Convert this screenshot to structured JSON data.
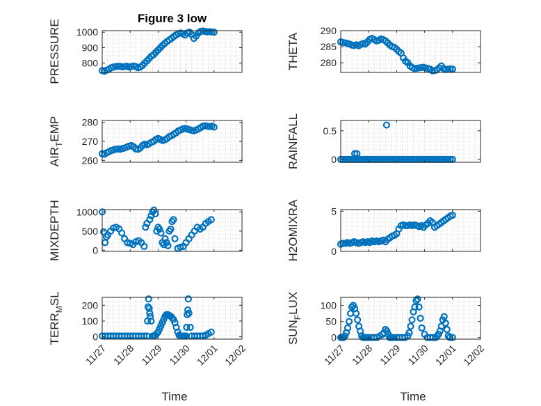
{
  "figure": {
    "background": "#ffffff",
    "marker_color": "#0072bd"
  },
  "x_axis": {
    "label": "Time",
    "tick_labels": [
      "11/27",
      "11/28",
      "11/29",
      "11/30",
      "12/01",
      "12/02"
    ],
    "tick_values": [
      0,
      1,
      2,
      3,
      4,
      5
    ],
    "xlim": [
      0,
      5
    ]
  },
  "chart_data": [
    {
      "id": "pressure",
      "type": "scatter",
      "title": "Figure 3 low",
      "ylabel": "PRESSURE",
      "ylim": [
        740,
        1010
      ],
      "yticks": [
        800,
        900,
        1000
      ],
      "ytick_labels": [
        "800",
        "900",
        "1000"
      ],
      "x": [
        0.0,
        0.08,
        0.16,
        0.24,
        0.32,
        0.4,
        0.48,
        0.56,
        0.64,
        0.72,
        0.8,
        0.88,
        0.96,
        1.04,
        1.12,
        1.2,
        1.28,
        1.36,
        1.44,
        1.52,
        1.6,
        1.68,
        1.76,
        1.84,
        1.92,
        2.0,
        2.08,
        2.16,
        2.24,
        2.32,
        2.4,
        2.48,
        2.56,
        2.64,
        2.72,
        2.8,
        2.88,
        2.96,
        3.04,
        3.12,
        3.2,
        3.28,
        3.36,
        3.44,
        3.52,
        3.6,
        3.68,
        3.76,
        3.84,
        3.92,
        4.0
      ],
      "y": [
        752,
        748,
        755,
        760,
        770,
        775,
        778,
        780,
        779,
        776,
        778,
        780,
        775,
        778,
        782,
        778,
        770,
        775,
        785,
        800,
        815,
        830,
        845,
        855,
        870,
        885,
        900,
        915,
        928,
        940,
        950,
        960,
        972,
        982,
        990,
        995,
        990,
        982,
        995,
        1000,
        985,
        960,
        975,
        995,
        1005,
        1008,
        1005,
        1002,
        1003,
        1001,
        1000
      ]
    },
    {
      "id": "theta",
      "type": "scatter",
      "title": "",
      "ylabel": "THETA",
      "ylim": [
        277,
        290
      ],
      "yticks": [
        280,
        285,
        290
      ],
      "ytick_labels": [
        "280",
        "285",
        "290"
      ],
      "x": [
        0.0,
        0.08,
        0.16,
        0.24,
        0.32,
        0.4,
        0.48,
        0.56,
        0.64,
        0.72,
        0.8,
        0.88,
        0.96,
        1.04,
        1.12,
        1.2,
        1.28,
        1.36,
        1.44,
        1.52,
        1.6,
        1.68,
        1.76,
        1.84,
        1.92,
        2.0,
        2.08,
        2.16,
        2.24,
        2.32,
        2.4,
        2.48,
        2.56,
        2.64,
        2.72,
        2.8,
        2.88,
        2.96,
        3.04,
        3.12,
        3.2,
        3.28,
        3.36,
        3.44,
        3.52,
        3.6,
        3.68,
        3.76,
        3.84,
        3.92,
        4.0
      ],
      "y": [
        286.5,
        286.3,
        286.2,
        286.0,
        285.8,
        285.5,
        285.4,
        285.6,
        285.3,
        285.7,
        286.0,
        285.8,
        286.5,
        287.3,
        287.6,
        287.2,
        286.8,
        287.0,
        287.4,
        287.2,
        286.8,
        286.2,
        285.5,
        285.0,
        284.8,
        284.2,
        283.5,
        283.0,
        281.5,
        280.5,
        280.0,
        279.0,
        278.5,
        278.2,
        278.3,
        278.4,
        278.5,
        278.6,
        278.4,
        278.2,
        278.0,
        277.5,
        277.6,
        277.8,
        278.4,
        279.0,
        278.2,
        277.9,
        278.0,
        278.1,
        278.0
      ]
    },
    {
      "id": "air_temp",
      "type": "scatter",
      "title": "",
      "ylabel": "AIR_TEMP",
      "ylim": [
        259,
        281
      ],
      "yticks": [
        260,
        270,
        280
      ],
      "ytick_labels": [
        "260",
        "270",
        "280"
      ],
      "x": [
        0.0,
        0.08,
        0.16,
        0.24,
        0.32,
        0.4,
        0.48,
        0.56,
        0.64,
        0.72,
        0.8,
        0.88,
        0.96,
        1.04,
        1.12,
        1.2,
        1.28,
        1.36,
        1.44,
        1.52,
        1.6,
        1.68,
        1.76,
        1.84,
        1.92,
        2.0,
        2.08,
        2.16,
        2.24,
        2.32,
        2.4,
        2.48,
        2.56,
        2.64,
        2.72,
        2.8,
        2.88,
        2.96,
        3.04,
        3.12,
        3.2,
        3.28,
        3.36,
        3.44,
        3.52,
        3.6,
        3.68,
        3.76,
        3.84,
        3.92,
        4.0
      ],
      "y": [
        263.5,
        263.2,
        264.0,
        264.5,
        265.2,
        265.5,
        265.8,
        266.0,
        265.8,
        266.2,
        266.5,
        267.0,
        267.5,
        267.8,
        267.2,
        266.0,
        265.8,
        266.5,
        267.8,
        268.5,
        268.2,
        268.8,
        269.5,
        270.0,
        271.0,
        271.5,
        271.0,
        270.5,
        270.8,
        271.5,
        272.5,
        273.0,
        273.8,
        274.5,
        275.5,
        276.0,
        276.5,
        276.8,
        276.5,
        276.2,
        275.8,
        275.5,
        276.0,
        276.5,
        277.2,
        278.0,
        278.2,
        278.0,
        277.8,
        278.0,
        277.5
      ]
    },
    {
      "id": "rainfall",
      "type": "scatter",
      "title": "",
      "ylabel": "RAINFALL",
      "ylim": [
        -0.05,
        0.68
      ],
      "yticks": [
        0,
        0.5
      ],
      "ytick_labels": [
        "0",
        "0.5"
      ],
      "x": [
        0.0,
        0.08,
        0.16,
        0.24,
        0.32,
        0.4,
        0.48,
        0.56,
        0.64,
        0.72,
        0.8,
        0.88,
        0.96,
        1.04,
        1.12,
        1.2,
        1.28,
        1.36,
        1.44,
        1.52,
        1.6,
        1.68,
        1.76,
        1.84,
        1.92,
        2.0,
        2.08,
        2.16,
        2.24,
        2.32,
        2.4,
        2.48,
        2.56,
        2.64,
        2.72,
        2.8,
        2.88,
        2.96,
        3.04,
        3.12,
        3.2,
        3.28,
        3.36,
        3.44,
        3.52,
        3.6,
        3.68,
        3.76,
        3.84,
        3.92,
        4.0,
        0.5,
        0.58,
        1.64
      ],
      "y": [
        0,
        0,
        0,
        0,
        0,
        0,
        0,
        0,
        0,
        0,
        0,
        0,
        0,
        0,
        0,
        0,
        0,
        0,
        0,
        0,
        0,
        0,
        0,
        0,
        0,
        0,
        0,
        0,
        0,
        0,
        0,
        0,
        0,
        0,
        0,
        0,
        0,
        0,
        0,
        0,
        0,
        0,
        0,
        0,
        0,
        0,
        0,
        0,
        0,
        0,
        0,
        0.1,
        0.1,
        0.6
      ]
    },
    {
      "id": "mixdepth",
      "type": "scatter",
      "title": "",
      "ylabel": "MIXDEPTH",
      "ylim": [
        -30,
        1060
      ],
      "yticks": [
        0,
        500,
        1000
      ],
      "ytick_labels": [
        "0",
        "500",
        "1000"
      ],
      "x": [
        0.0,
        0.05,
        0.1,
        0.15,
        0.2,
        0.3,
        0.4,
        0.5,
        0.6,
        0.7,
        0.8,
        0.9,
        1.0,
        1.1,
        1.2,
        1.3,
        1.4,
        1.5,
        1.55,
        1.6,
        1.7,
        1.75,
        1.8,
        1.85,
        1.9,
        1.95,
        2.0,
        2.05,
        2.1,
        2.15,
        2.2,
        2.25,
        2.3,
        2.35,
        2.4,
        2.45,
        2.5,
        2.55,
        2.6,
        2.7,
        2.8,
        2.9,
        3.0,
        3.1,
        3.2,
        3.3,
        3.4,
        3.5,
        3.6,
        3.7,
        3.8,
        3.9
      ],
      "y": [
        1000,
        480,
        200,
        350,
        400,
        500,
        580,
        600,
        560,
        450,
        300,
        200,
        180,
        150,
        220,
        250,
        200,
        100,
        600,
        700,
        800,
        900,
        1000,
        1050,
        950,
        500,
        600,
        550,
        450,
        200,
        150,
        300,
        200,
        120,
        500,
        550,
        750,
        800,
        300,
        50,
        80,
        100,
        200,
        300,
        400,
        500,
        600,
        550,
        600,
        700,
        750,
        800
      ]
    },
    {
      "id": "h2omixra",
      "type": "scatter",
      "title": "",
      "ylabel": "H2OMIXRA",
      "ylim": [
        0,
        5.2
      ],
      "yticks": [
        0,
        5
      ],
      "ytick_labels": [
        "0",
        "5"
      ],
      "x": [
        0.0,
        0.08,
        0.16,
        0.24,
        0.32,
        0.4,
        0.48,
        0.56,
        0.64,
        0.72,
        0.8,
        0.88,
        0.96,
        1.04,
        1.12,
        1.2,
        1.28,
        1.36,
        1.44,
        1.52,
        1.6,
        1.68,
        1.76,
        1.84,
        1.92,
        2.0,
        2.08,
        2.16,
        2.24,
        2.32,
        2.4,
        2.48,
        2.56,
        2.64,
        2.72,
        2.8,
        2.88,
        2.96,
        3.04,
        3.12,
        3.2,
        3.28,
        3.36,
        3.44,
        3.52,
        3.6,
        3.68,
        3.76,
        3.84,
        3.92,
        4.0
      ],
      "y": [
        0.9,
        1.0,
        1.0,
        1.1,
        1.0,
        1.1,
        1.2,
        1.1,
        1.0,
        1.1,
        1.2,
        1.1,
        1.2,
        1.1,
        1.3,
        1.2,
        1.3,
        1.2,
        1.3,
        1.4,
        1.2,
        1.5,
        1.7,
        1.9,
        2.0,
        2.2,
        2.8,
        3.2,
        3.3,
        3.2,
        3.2,
        3.3,
        3.2,
        3.3,
        3.2,
        3.1,
        3.2,
        3.0,
        3.3,
        3.5,
        3.8,
        3.6,
        3.0,
        3.2,
        3.4,
        3.6,
        3.8,
        4.0,
        4.2,
        4.4,
        4.5
      ]
    },
    {
      "id": "terr_msl",
      "type": "scatter",
      "title": "",
      "ylabel": "TERR_MSL",
      "ylim": [
        -15,
        250
      ],
      "yticks": [
        0,
        100,
        200
      ],
      "ytick_labels": [
        "0",
        "100",
        "200"
      ],
      "x": [
        0.0,
        0.1,
        0.2,
        0.3,
        0.4,
        0.5,
        0.6,
        0.7,
        0.8,
        0.9,
        1.0,
        1.1,
        1.2,
        1.3,
        1.4,
        1.5,
        1.6,
        1.62,
        1.64,
        1.66,
        1.68,
        1.7,
        1.72,
        1.75,
        1.8,
        1.85,
        1.9,
        1.95,
        2.0,
        2.05,
        2.1,
        2.15,
        2.2,
        2.25,
        2.3,
        2.35,
        2.4,
        2.45,
        2.5,
        2.55,
        2.6,
        2.65,
        2.7,
        2.75,
        2.8,
        2.85,
        2.9,
        2.95,
        3.0,
        3.02,
        3.04,
        3.06,
        3.08,
        3.1,
        3.15,
        3.2,
        3.3,
        3.4,
        3.5,
        3.6,
        3.7,
        3.8,
        3.9
      ],
      "y": [
        5,
        5,
        5,
        5,
        5,
        5,
        5,
        5,
        5,
        5,
        5,
        5,
        5,
        5,
        5,
        5,
        5,
        100,
        190,
        240,
        180,
        150,
        130,
        100,
        5,
        5,
        10,
        20,
        30,
        50,
        70,
        90,
        110,
        130,
        140,
        140,
        135,
        130,
        120,
        110,
        90,
        60,
        30,
        10,
        5,
        5,
        5,
        5,
        5,
        60,
        140,
        170,
        240,
        150,
        60,
        5,
        5,
        5,
        5,
        5,
        10,
        20,
        30
      ]
    },
    {
      "id": "sun_flux",
      "type": "scatter",
      "title": "",
      "ylabel": "SUN_FLUX",
      "ylim": [
        -5,
        125
      ],
      "yticks": [
        0,
        50,
        100
      ],
      "ytick_labels": [
        "0",
        "50",
        "100"
      ],
      "x": [
        0.0,
        0.05,
        0.1,
        0.15,
        0.2,
        0.25,
        0.3,
        0.35,
        0.4,
        0.45,
        0.5,
        0.55,
        0.6,
        0.65,
        0.7,
        0.75,
        0.8,
        0.85,
        0.9,
        0.95,
        1.0,
        1.1,
        1.2,
        1.3,
        1.4,
        1.5,
        1.55,
        1.6,
        1.65,
        1.7,
        1.75,
        1.8,
        1.85,
        1.9,
        2.0,
        2.1,
        2.2,
        2.3,
        2.4,
        2.45,
        2.5,
        2.55,
        2.6,
        2.65,
        2.7,
        2.75,
        2.8,
        2.85,
        2.9,
        3.0,
        3.1,
        3.2,
        3.3,
        3.4,
        3.45,
        3.5,
        3.55,
        3.6,
        3.65,
        3.7,
        3.75,
        3.8,
        3.85,
        3.9,
        4.0
      ],
      "y": [
        0,
        0,
        0,
        5,
        15,
        30,
        50,
        75,
        95,
        100,
        90,
        75,
        55,
        35,
        20,
        5,
        0,
        0,
        0,
        0,
        0,
        0,
        0,
        0,
        5,
        10,
        15,
        25,
        20,
        10,
        0,
        0,
        0,
        0,
        0,
        0,
        0,
        0,
        5,
        15,
        35,
        55,
        80,
        95,
        115,
        120,
        95,
        60,
        30,
        10,
        0,
        0,
        0,
        0,
        5,
        10,
        20,
        35,
        55,
        65,
        45,
        25,
        5,
        0,
        0
      ]
    }
  ]
}
